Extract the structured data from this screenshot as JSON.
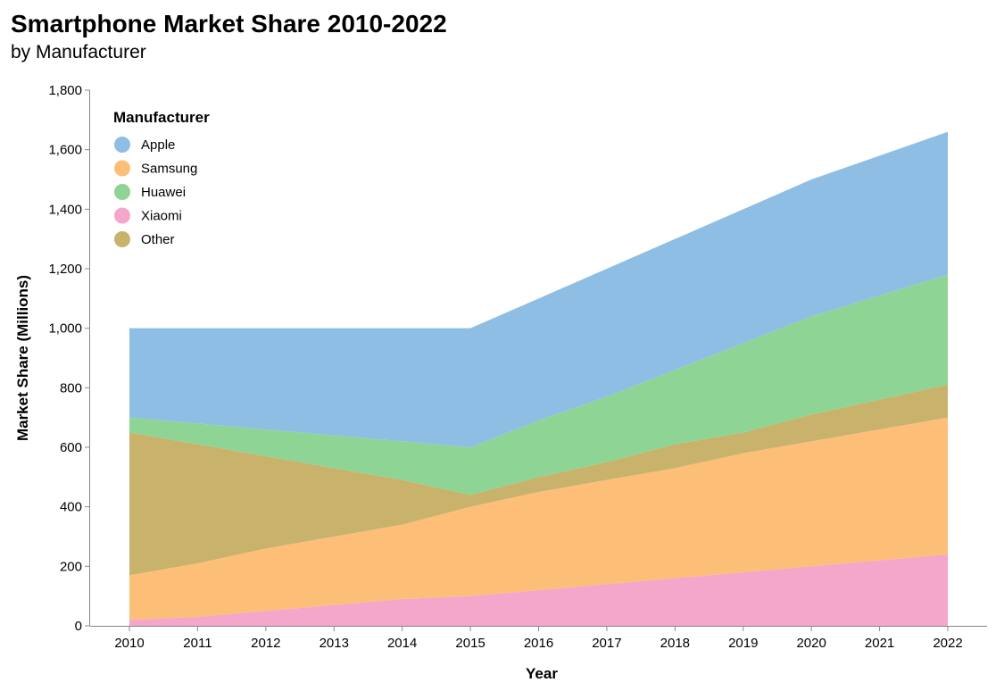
{
  "chart_data": {
    "type": "area",
    "stacked": true,
    "title": "Smartphone Market Share 2010-2022",
    "subtitle": "by Manufacturer",
    "xlabel": "Year",
    "ylabel": "Market Share (Millions)",
    "x": [
      2010,
      2011,
      2012,
      2013,
      2014,
      2015,
      2016,
      2017,
      2018,
      2019,
      2020,
      2021,
      2022
    ],
    "ylim": [
      0,
      1800
    ],
    "yticks": [
      0,
      200,
      400,
      600,
      800,
      1000,
      1200,
      1400,
      1600,
      1800
    ],
    "ytick_labels": [
      "0",
      "200",
      "400",
      "600",
      "800",
      "1,000",
      "1,200",
      "1,400",
      "1,600",
      "1,800"
    ],
    "grid": false,
    "legend_title": "Manufacturer",
    "legend_position": "top-left",
    "stack_order_bottom_to_top": [
      "Xiaomi",
      "Samsung",
      "Other",
      "Huawei",
      "Apple"
    ],
    "series": [
      {
        "name": "Apple",
        "color": "#8fbee4",
        "values": [
          300,
          320,
          340,
          360,
          380,
          400,
          410,
          430,
          440,
          450,
          460,
          470,
          480
        ]
      },
      {
        "name": "Samsung",
        "color": "#fdbe78",
        "values": [
          150,
          180,
          210,
          230,
          250,
          300,
          330,
          350,
          370,
          400,
          420,
          440,
          460
        ]
      },
      {
        "name": "Huawei",
        "color": "#8ed495",
        "values": [
          50,
          70,
          90,
          110,
          130,
          160,
          190,
          220,
          250,
          300,
          330,
          350,
          370
        ]
      },
      {
        "name": "Xiaomi",
        "color": "#f4a6cb",
        "values": [
          20,
          30,
          50,
          70,
          90,
          100,
          120,
          140,
          160,
          180,
          200,
          220,
          240
        ]
      },
      {
        "name": "Other",
        "color": "#c9b26c",
        "values": [
          480,
          400,
          310,
          230,
          150,
          40,
          50,
          60,
          80,
          70,
          90,
          100,
          110
        ]
      }
    ]
  }
}
